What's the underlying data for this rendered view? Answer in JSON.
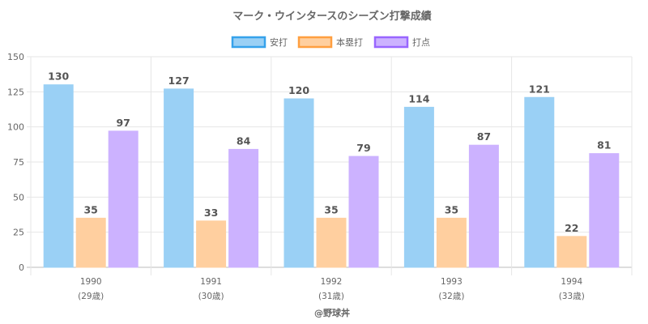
{
  "chart_data": {
    "type": "bar",
    "title": "マーク・ウインタースのシーズン打撃成績",
    "categories": [
      "1990",
      "1991",
      "1992",
      "1993",
      "1994"
    ],
    "category_sublabels": [
      "(29歳)",
      "(30歳)",
      "(31歳)",
      "(32歳)",
      "(33歳)"
    ],
    "series": [
      {
        "name": "安打",
        "values": [
          130,
          127,
          120,
          114,
          121
        ],
        "fill": "#9ad0f5",
        "stroke": "#36a2eb"
      },
      {
        "name": "本塁打",
        "values": [
          35,
          33,
          35,
          35,
          22
        ],
        "fill": "#ffcf9f",
        "stroke": "#ff9f40"
      },
      {
        "name": "打点",
        "values": [
          97,
          84,
          79,
          87,
          81
        ],
        "fill": "#ccb2ff",
        "stroke": "#9966ff"
      }
    ],
    "yticks": [
      0,
      25,
      50,
      75,
      100,
      125,
      150
    ],
    "ylim": [
      0,
      150
    ],
    "xlabel": "",
    "ylabel": "",
    "grid": true,
    "legend_position": "top-center",
    "credit": "@野球丼"
  }
}
